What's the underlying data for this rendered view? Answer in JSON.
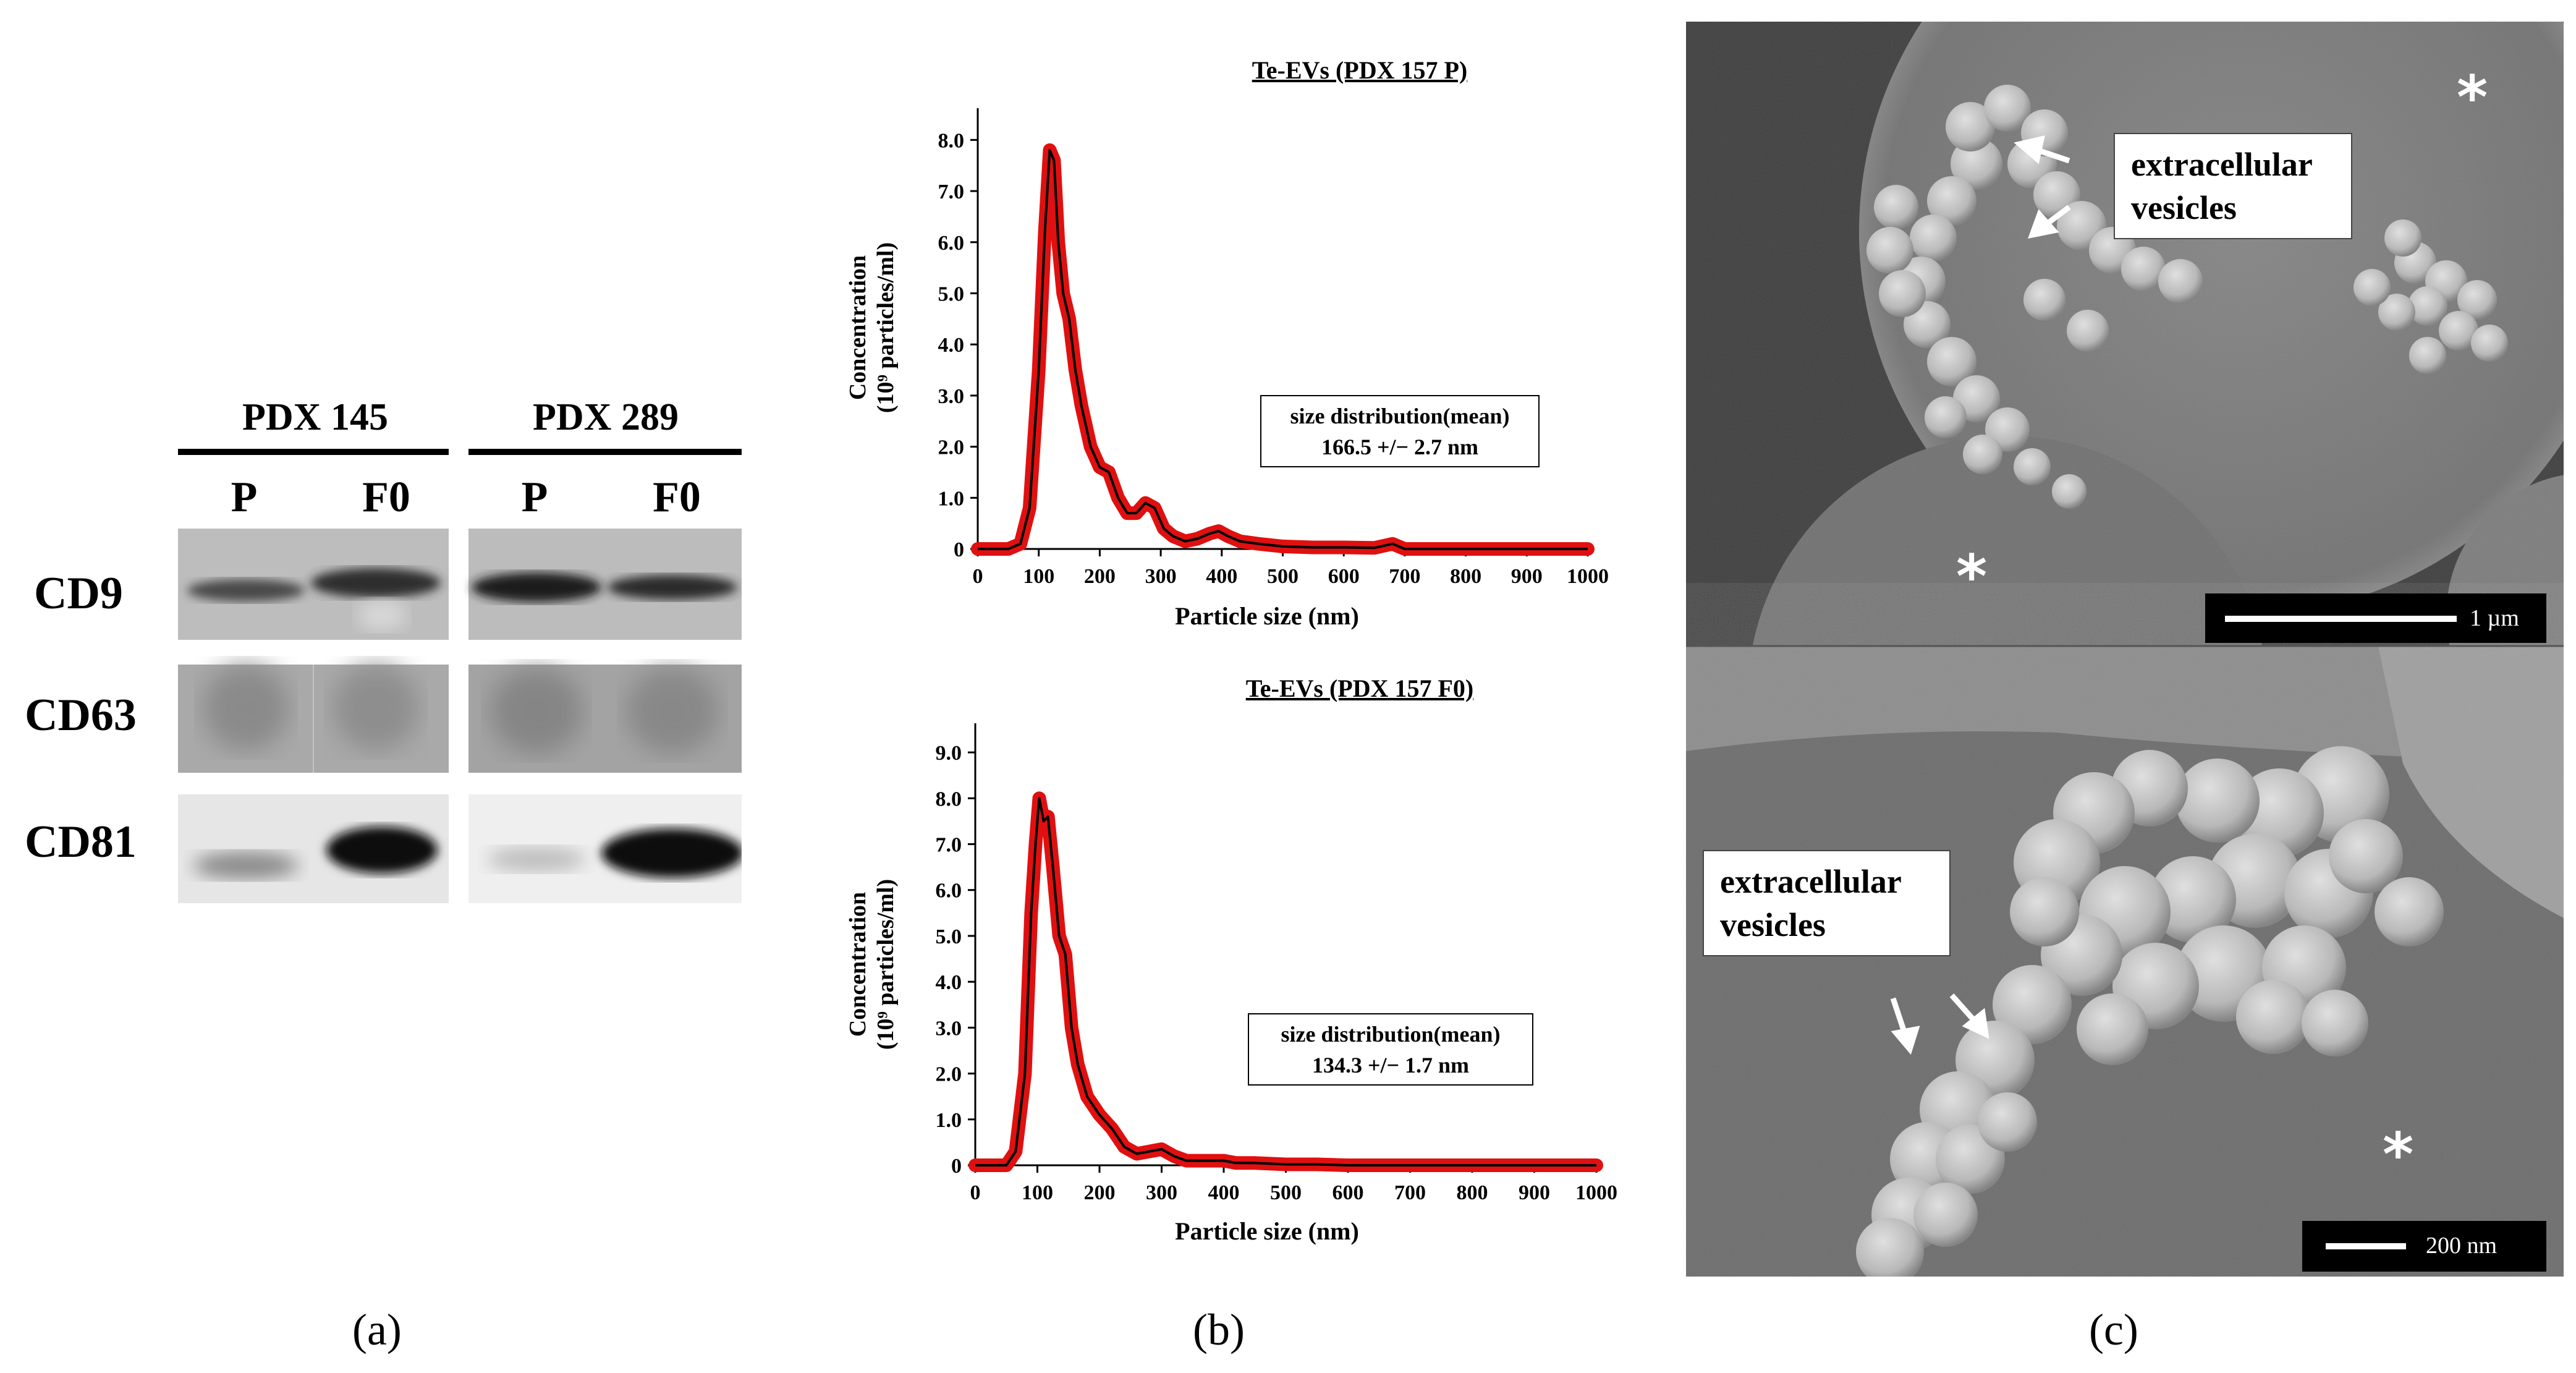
{
  "panel_a": {
    "groups": [
      {
        "title": "PDX 145",
        "lanes": [
          "P",
          "F0"
        ]
      },
      {
        "title": "PDX 289",
        "lanes": [
          "P",
          "F0"
        ]
      }
    ],
    "rows": [
      "CD9",
      "CD63",
      "CD81"
    ],
    "letter": "(a)"
  },
  "panel_b": {
    "letter": "(b)",
    "charts": [
      {
        "title": "Te-EVs (PDX 157 P)",
        "annotation_line1": "size distribution(mean)",
        "annotation_line2": "166.5 +/− 2.7 nm"
      },
      {
        "title": "Te-EVs (PDX 157 F0)",
        "annotation_line1": "size distribution(mean)",
        "annotation_line2": "134.3 +/− 1.7 nm"
      }
    ],
    "ylabel_line1": "Concentration",
    "ylabel_line2": "(10⁹ particles/ml)",
    "xlabel": "Particle size (nm)"
  },
  "panel_c": {
    "letter": "(c)",
    "top_label": [
      "extracellular",
      "vesicles"
    ],
    "bottom_label": [
      "extracellular",
      "vesicles"
    ],
    "top_scale": "1 µm",
    "bottom_scale": "200 nm",
    "star": "*"
  },
  "chart_data": [
    {
      "type": "line",
      "title": "Te-EVs (PDX 157 P)",
      "xlabel": "Particle size (nm)",
      "ylabel": "Concentration (10⁹ particles/ml)",
      "xlim": [
        0,
        1000
      ],
      "ylim": [
        0,
        8.5
      ],
      "xticks": [
        0,
        100,
        200,
        300,
        400,
        500,
        600,
        700,
        800,
        900,
        1000
      ],
      "yticks": [
        0,
        1.0,
        2.0,
        3.0,
        4.0,
        5.0,
        6.0,
        7.0,
        8.0
      ],
      "series": [
        {
          "x": [
            0,
            50,
            70,
            85,
            100,
            110,
            118,
            125,
            132,
            140,
            150,
            160,
            170,
            185,
            200,
            215,
            230,
            245,
            260,
            275,
            290,
            305,
            320,
            340,
            360,
            380,
            395,
            410,
            430,
            460,
            500,
            550,
            600,
            650,
            680,
            690,
            700,
            750,
            800,
            900,
            1000
          ],
          "y": [
            0,
            0,
            0.1,
            0.8,
            3.5,
            6.2,
            7.8,
            7.6,
            6.0,
            5.0,
            4.5,
            3.5,
            2.8,
            2.0,
            1.6,
            1.5,
            1.0,
            0.7,
            0.7,
            0.9,
            0.8,
            0.4,
            0.25,
            0.15,
            0.2,
            0.3,
            0.35,
            0.25,
            0.15,
            0.1,
            0.05,
            0.03,
            0.03,
            0.02,
            0.1,
            0.05,
            0,
            0,
            0,
            0,
            0
          ]
        }
      ]
    },
    {
      "type": "line",
      "title": "Te-EVs (PDX 157 F0)",
      "xlabel": "Particle size (nm)",
      "ylabel": "Concentration (10⁹ particles/ml)",
      "xlim": [
        0,
        1000
      ],
      "ylim": [
        0,
        9.5
      ],
      "xticks": [
        0,
        100,
        200,
        300,
        400,
        500,
        600,
        700,
        800,
        900,
        1000
      ],
      "yticks": [
        0,
        1.0,
        2.0,
        3.0,
        4.0,
        5.0,
        6.0,
        7.0,
        8.0,
        9.0
      ],
      "series": [
        {
          "x": [
            0,
            50,
            65,
            80,
            90,
            97,
            103,
            110,
            117,
            125,
            135,
            145,
            155,
            165,
            180,
            200,
            220,
            240,
            260,
            280,
            300,
            320,
            340,
            360,
            380,
            400,
            420,
            450,
            500,
            550,
            600,
            700,
            800,
            900,
            1000
          ],
          "y": [
            0,
            0,
            0.3,
            2.0,
            5.5,
            7.0,
            8.0,
            7.5,
            7.6,
            6.5,
            5.0,
            4.6,
            3.0,
            2.2,
            1.5,
            1.1,
            0.8,
            0.4,
            0.25,
            0.3,
            0.35,
            0.2,
            0.1,
            0.1,
            0.1,
            0.1,
            0.05,
            0.05,
            0.02,
            0.02,
            0,
            0,
            0,
            0,
            0
          ]
        }
      ]
    }
  ]
}
